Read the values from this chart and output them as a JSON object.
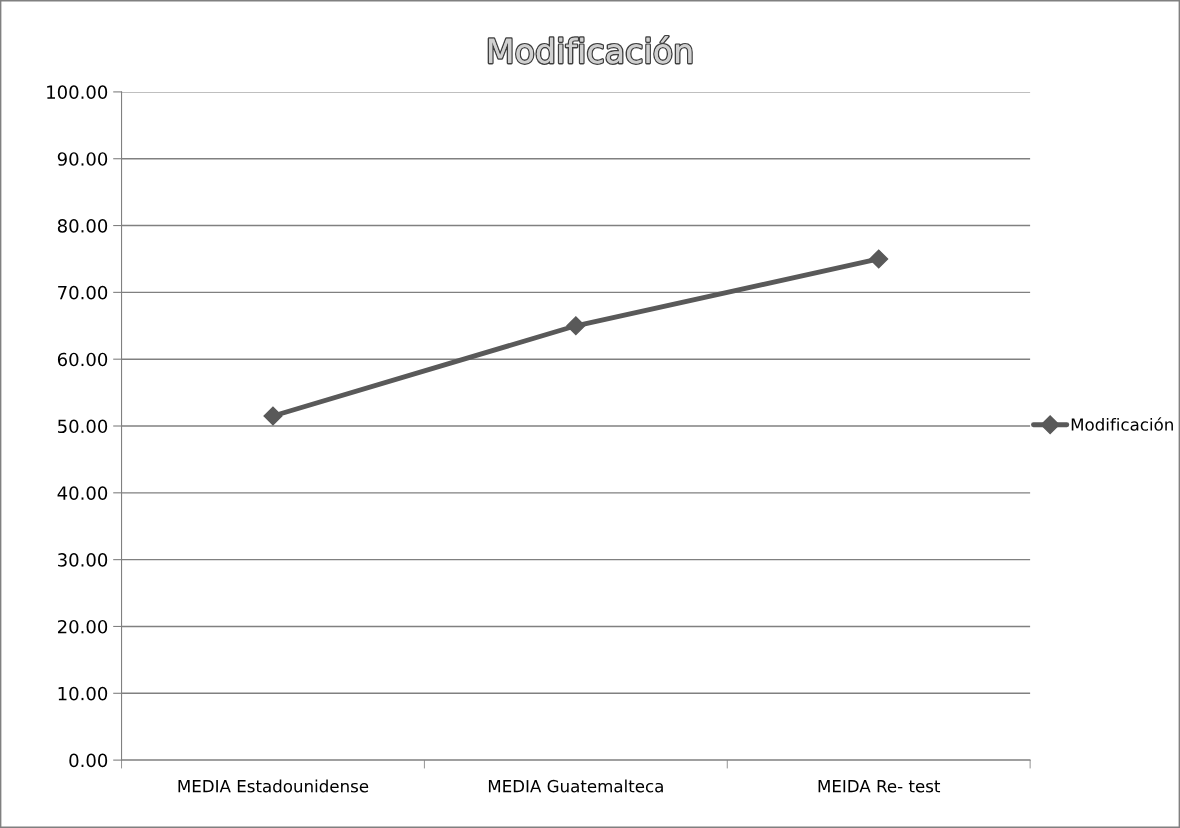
{
  "chart_data": {
    "type": "line",
    "title": "Modificación",
    "categories": [
      "MEDIA Estadounidense",
      "MEDIA Guatemalteca",
      "MEIDA Re- test"
    ],
    "series": [
      {
        "name": "Modificación",
        "color": "#595959",
        "values": [
          51.5,
          65.0,
          75.0
        ]
      }
    ],
    "ylim": [
      0,
      100
    ],
    "yticks": [
      {
        "value": 0,
        "label": "0.00"
      },
      {
        "value": 10,
        "label": "10.00"
      },
      {
        "value": 20,
        "label": "20.00"
      },
      {
        "value": 30,
        "label": "30.00"
      },
      {
        "value": 40,
        "label": "40.00"
      },
      {
        "value": 50,
        "label": "50.00"
      },
      {
        "value": 60,
        "label": "60.00"
      },
      {
        "value": 70,
        "label": "70.00"
      },
      {
        "value": 80,
        "label": "80.00"
      },
      {
        "value": 90,
        "label": "90.00"
      },
      {
        "value": 100,
        "label": "100.00"
      }
    ],
    "grid": "y",
    "legend": "right",
    "marker": "diamond",
    "line_style": "solid"
  }
}
